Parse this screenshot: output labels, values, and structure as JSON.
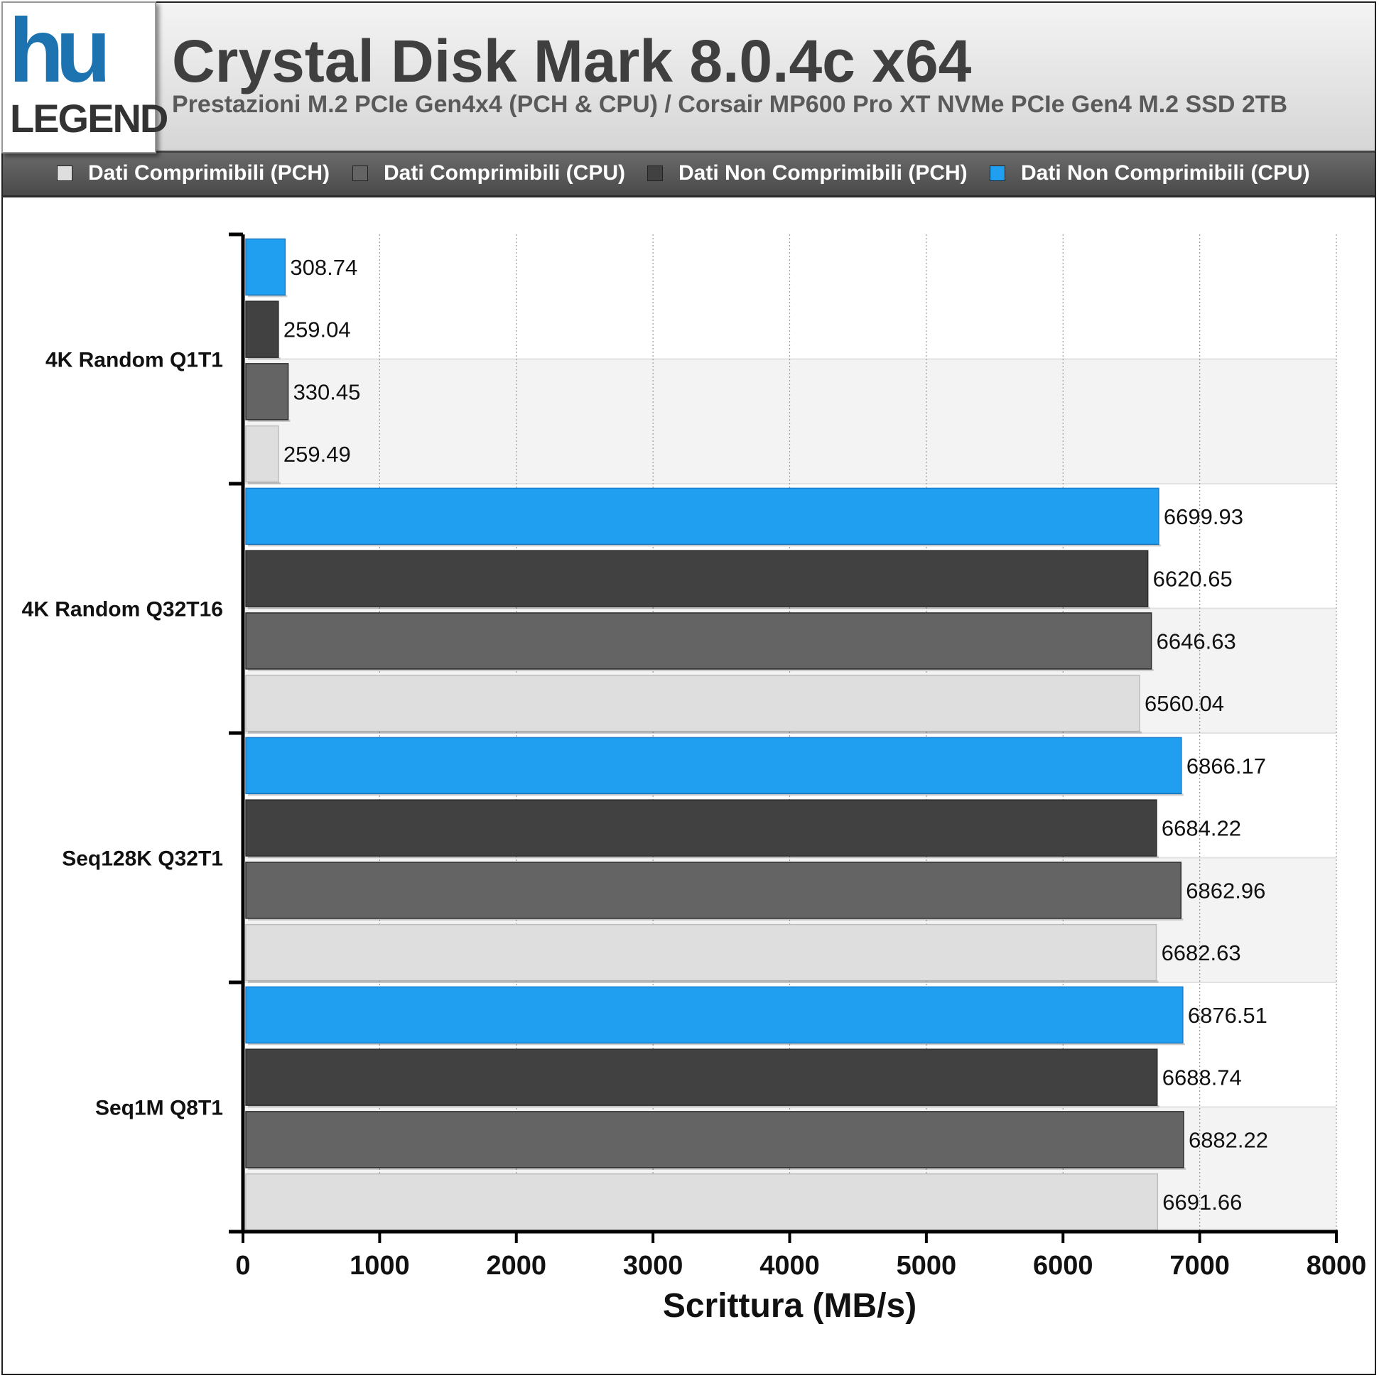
{
  "header": {
    "logo_top": "hu",
    "logo_bottom": "LEGEND",
    "title": "Crystal Disk Mark 8.0.4c x64",
    "subtitle": "Prestazioni M.2 PCIe Gen4x4 (PCH & CPU) / Corsair MP600 Pro XT NVMe PCIe Gen4 M.2 SSD 2TB"
  },
  "legend": [
    {
      "label": "Dati Comprimibili (PCH)",
      "color": "#dedede"
    },
    {
      "label": "Dati Comprimibili (CPU)",
      "color": "#646464"
    },
    {
      "label": "Dati Non Comprimibili (PCH)",
      "color": "#414141"
    },
    {
      "label": "Dati Non Comprimibili (CPU)",
      "color": "#209ff0"
    }
  ],
  "chart_data": {
    "type": "bar",
    "orientation": "horizontal",
    "categories": [
      "4K Random Q1T1",
      "4K Random Q32T16",
      "Seq128K Q32T1",
      "Seq1M Q8T1"
    ],
    "series": [
      {
        "name": "Dati Non Comprimibili (CPU)",
        "color": "#209ff0",
        "values": [
          308.74,
          6699.93,
          6866.17,
          6876.51
        ]
      },
      {
        "name": "Dati Non Comprimibili (PCH)",
        "color": "#414141",
        "values": [
          259.04,
          6620.65,
          6684.22,
          6688.74
        ]
      },
      {
        "name": "Dati Comprimibili (CPU)",
        "color": "#646464",
        "values": [
          330.45,
          6646.63,
          6862.96,
          6882.22
        ]
      },
      {
        "name": "Dati Comprimibili (PCH)",
        "color": "#dedede",
        "values": [
          259.49,
          6560.04,
          6682.63,
          6691.66
        ]
      }
    ],
    "xlabel": "Scrittura (MB/s)",
    "xlim": [
      0,
      8000
    ],
    "xticks": [
      0,
      1000,
      2000,
      3000,
      4000,
      5000,
      6000,
      7000,
      8000
    ],
    "grid": "vertical dotted",
    "legend_position": "top"
  }
}
